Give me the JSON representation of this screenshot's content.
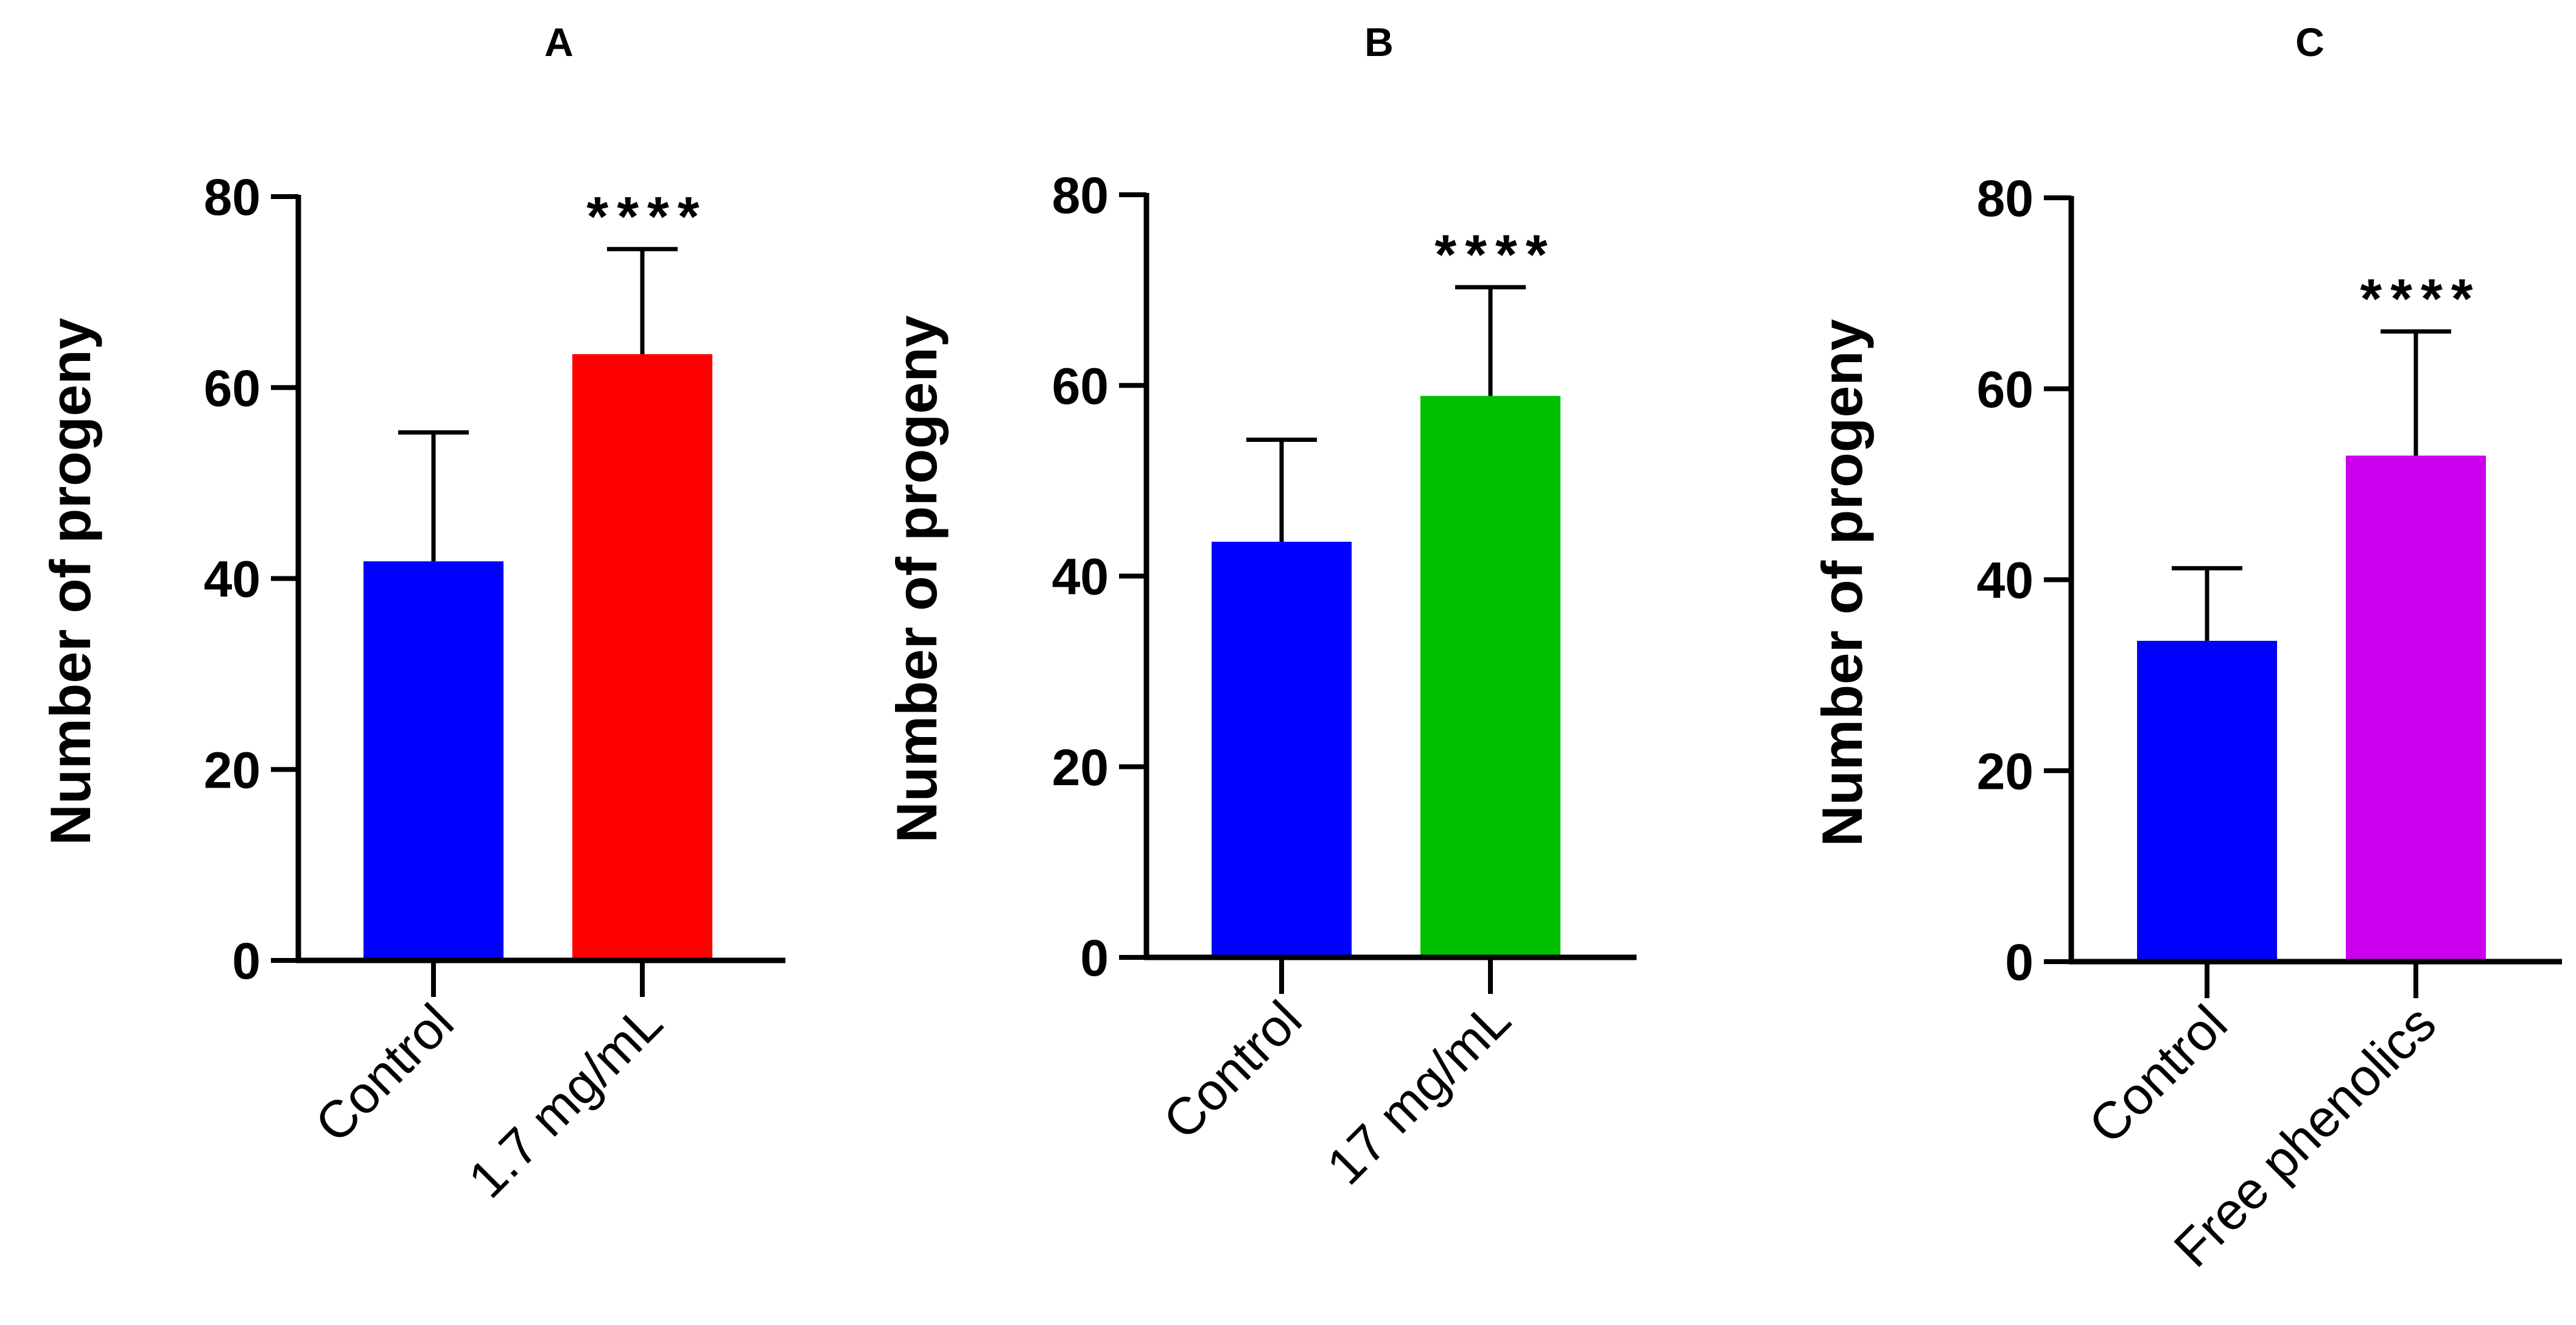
{
  "chart_data": [
    {
      "type": "bar",
      "panel": "A",
      "title": "",
      "ylabel": "Number of progeny",
      "xlabel": "",
      "ylim": [
        0,
        80
      ],
      "yticks": [
        0,
        20,
        40,
        60,
        80
      ],
      "categories": [
        "Control",
        "1.7 mg/mL"
      ],
      "values": [
        41.8,
        63.5
      ],
      "errors": [
        13.5,
        11.0
      ],
      "colors": [
        "#0000ff",
        "#ff0000"
      ],
      "annotations": [
        "",
        "****"
      ]
    },
    {
      "type": "bar",
      "panel": "B",
      "title": "",
      "ylabel": "Number of progeny",
      "xlabel": "",
      "ylim": [
        0,
        80
      ],
      "yticks": [
        0,
        20,
        40,
        60,
        80
      ],
      "categories": [
        "Control",
        "17 mg/mL"
      ],
      "values": [
        43.6,
        58.9
      ],
      "errors": [
        10.7,
        11.4
      ],
      "colors": [
        "#0000ff",
        "#00c000"
      ],
      "annotations": [
        "",
        "****"
      ]
    },
    {
      "type": "bar",
      "panel": "C",
      "title": "",
      "ylabel": "Number of progeny",
      "xlabel": "",
      "ylim": [
        0,
        80
      ],
      "yticks": [
        0,
        20,
        40,
        60,
        80
      ],
      "categories": [
        "Control",
        "Free phenolics"
      ],
      "values": [
        33.6,
        53.0
      ],
      "errors": [
        7.6,
        13.0
      ],
      "colors": [
        "#0000ff",
        "#cc00ee"
      ],
      "annotations": [
        "",
        "****"
      ]
    }
  ]
}
